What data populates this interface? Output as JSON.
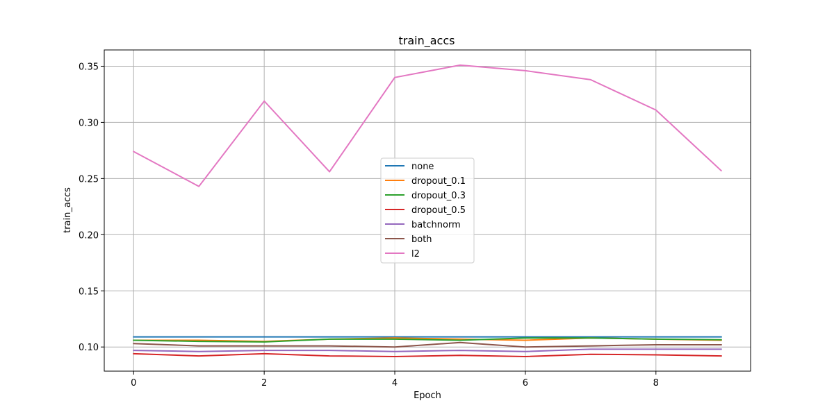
{
  "chart_data": {
    "type": "line",
    "title": "train_accs",
    "xlabel": "Epoch",
    "ylabel": "train_accs",
    "x": [
      0,
      1,
      2,
      3,
      4,
      5,
      6,
      7,
      8,
      9
    ],
    "xlim": [
      -0.45,
      9.45
    ],
    "ylim": [
      0.0785,
      0.3645
    ],
    "xticks": [
      0,
      2,
      4,
      6,
      8
    ],
    "yticks": [
      0.1,
      0.15,
      0.2,
      0.25,
      0.3,
      0.35
    ],
    "xtick_labels": [
      "0",
      "2",
      "4",
      "6",
      "8"
    ],
    "ytick_labels": [
      "0.10",
      "0.15",
      "0.20",
      "0.25",
      "0.30",
      "0.35"
    ],
    "grid": true,
    "legend_position": "center",
    "series": [
      {
        "name": "none",
        "color": "#1f77b4",
        "values": [
          0.109,
          0.109,
          0.109,
          0.109,
          0.109,
          0.109,
          0.109,
          0.109,
          0.109,
          0.109
        ]
      },
      {
        "name": "dropout_0.1",
        "color": "#ff7f0e",
        "values": [
          0.106,
          0.106,
          0.105,
          0.107,
          0.108,
          0.107,
          0.106,
          0.108,
          0.107,
          0.106
        ]
      },
      {
        "name": "dropout_0.3",
        "color": "#2ca02c",
        "values": [
          0.106,
          0.105,
          0.1045,
          0.107,
          0.107,
          0.106,
          0.108,
          0.108,
          0.107,
          0.1065
        ]
      },
      {
        "name": "dropout_0.5",
        "color": "#d62728",
        "values": [
          0.094,
          0.092,
          0.094,
          0.092,
          0.0915,
          0.0925,
          0.0915,
          0.0935,
          0.093,
          0.092
        ]
      },
      {
        "name": "batchnorm",
        "color": "#9467bd",
        "values": [
          0.097,
          0.096,
          0.097,
          0.097,
          0.096,
          0.097,
          0.096,
          0.098,
          0.098,
          0.098
        ]
      },
      {
        "name": "both",
        "color": "#8c564b",
        "values": [
          0.103,
          0.101,
          0.101,
          0.101,
          0.1,
          0.104,
          0.1,
          0.101,
          0.102,
          0.102
        ]
      },
      {
        "name": "l2",
        "color": "#e377c2",
        "values": [
          0.274,
          0.243,
          0.319,
          0.256,
          0.34,
          0.351,
          0.346,
          0.338,
          0.311,
          0.257
        ]
      }
    ]
  }
}
